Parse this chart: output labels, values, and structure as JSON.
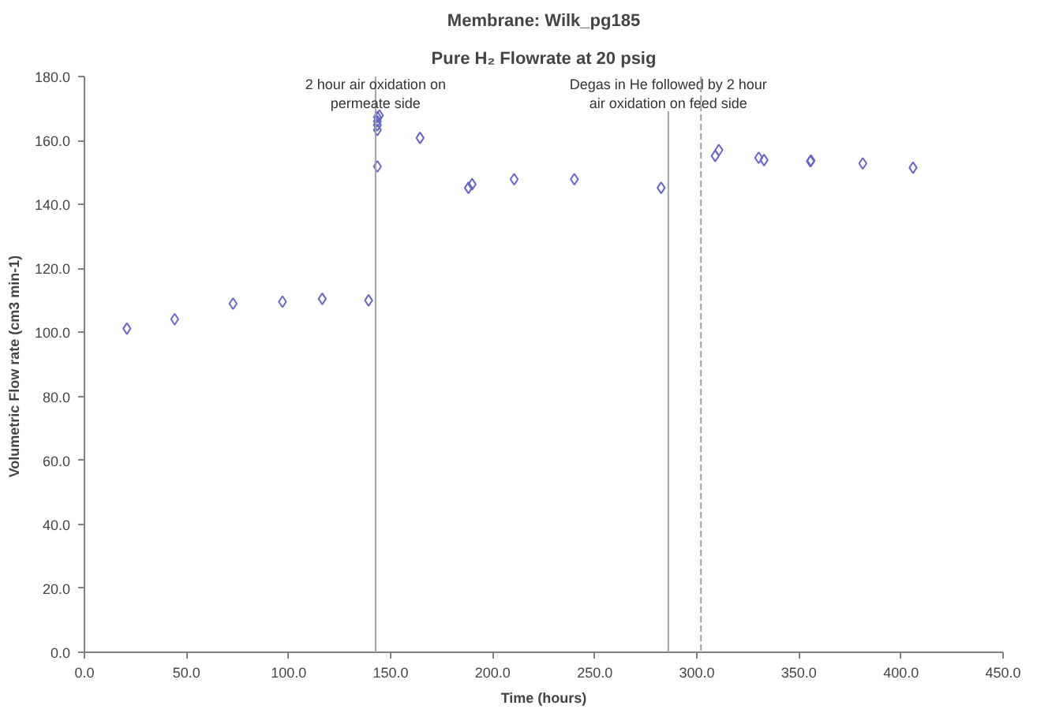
{
  "chart_data": {
    "type": "scatter",
    "title": "Membrane: Wilk_pg185",
    "subtitle": "Pure H₂ Flowrate at 20 psig",
    "xlabel": "Time (hours)",
    "ylabel": "Volumetric Flow rate (cm3  min-1)",
    "series": [
      {
        "color": "#6666cc",
        "x": [
          20.8,
          44.2,
          72.8,
          97,
          116.5,
          139.2,
          143.5,
          143.5,
          143.5,
          143.5,
          143.5,
          144.5,
          164.4,
          188.1,
          189.9,
          210.5,
          240,
          282.5,
          309,
          310.8,
          330.3,
          332.9,
          355.6,
          355.9,
          381.3,
          405.9
        ],
        "values": [
          101.2,
          104.1,
          109,
          109.6,
          110.5,
          110,
          151.9,
          163.3,
          164.8,
          166,
          167.3,
          167.8,
          160.8,
          145.2,
          146.3,
          147.9,
          147.9,
          145.2,
          155.2,
          157,
          154.6,
          153.9,
          153.5,
          153.7,
          152.8,
          151.5
        ]
      }
    ],
    "marker": "diamond",
    "grid": false,
    "xlim": [
      0,
      450
    ],
    "ylim": [
      0,
      180
    ],
    "xticks": [
      {
        "value": 0,
        "label": "0.0"
      },
      {
        "value": 50,
        "label": "50.0"
      },
      {
        "value": 100,
        "label": "100.0"
      },
      {
        "value": 150,
        "label": "150.0"
      },
      {
        "value": 200,
        "label": "200.0"
      },
      {
        "value": 250,
        "label": "250.0"
      },
      {
        "value": 300,
        "label": "300.0"
      },
      {
        "value": 350,
        "label": "350.0"
      },
      {
        "value": 400,
        "label": "400.0"
      },
      {
        "value": 450,
        "label": "450.0"
      }
    ],
    "yticks": [
      {
        "value": 0,
        "label": "0.0"
      },
      {
        "value": 20,
        "label": "20.0"
      },
      {
        "value": 40,
        "label": "40.0"
      },
      {
        "value": 60,
        "label": "60.0"
      },
      {
        "value": 80,
        "label": "80.0"
      },
      {
        "value": 100,
        "label": "100.0"
      },
      {
        "value": 120,
        "label": "120.0"
      },
      {
        "value": 140,
        "label": "140.0"
      },
      {
        "value": 160,
        "label": "160.0"
      },
      {
        "value": 180,
        "label": "180.0"
      }
    ],
    "ref_lines": [
      {
        "axis": "x",
        "value": 142.6,
        "color": "#a0a0a0",
        "line_style": "solid"
      },
      {
        "axis": "x",
        "value": 286,
        "color": "#a0a0a0",
        "line_style": "solid",
        "label": "Degas in He followed by 2 hour\nair oxidation on feed side"
      },
      {
        "axis": "x",
        "value": 302,
        "color": "#a0a0a0",
        "line_style": "dashed"
      }
    ],
    "annotations": [
      {
        "text": "2 hour air oxidation on\npermeate side",
        "x": 142.6,
        "y": 180
      }
    ]
  }
}
